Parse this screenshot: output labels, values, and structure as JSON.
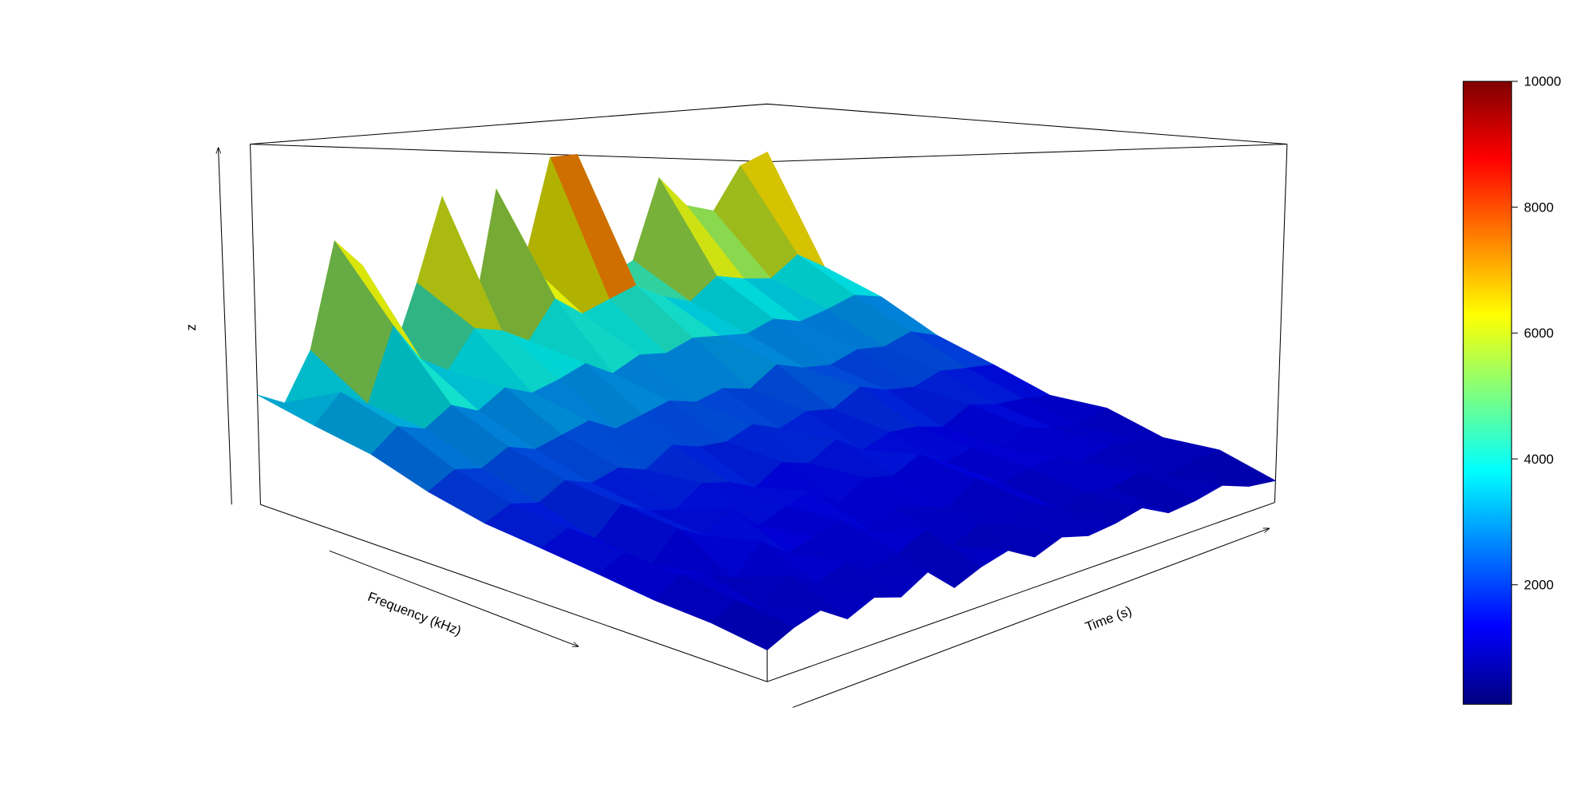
{
  "chart_data": {
    "type": "surface",
    "xlabel": "Frequency (kHz)",
    "ylabel": "Time (s)",
    "zlabel": "z",
    "zlim": [
      0,
      11500
    ],
    "z": [
      [
        3500,
        3000,
        4500,
        8000,
        7000,
        3500,
        6000,
        9000,
        4000,
        9000,
        6000,
        10000,
        10000,
        4500,
        5000,
        8500,
        7000,
        6500,
        8500,
        9000
      ],
      [
        3000,
        3800,
        3200,
        5500,
        4200,
        3600,
        4800,
        4500,
        3900,
        5200,
        4400,
        4700,
        5000,
        4300,
        3800,
        4600,
        4200,
        3900,
        4700,
        3800
      ],
      [
        2600,
        3200,
        2900,
        3400,
        3000,
        3500,
        3100,
        3300,
        3600,
        3000,
        3400,
        3200,
        3500,
        3300,
        3100,
        3400,
        3000,
        3200,
        3500,
        3100
      ],
      [
        2000,
        2400,
        2200,
        2600,
        2300,
        2500,
        2700,
        2200,
        2400,
        2600,
        2300,
        2500,
        2200,
        2800,
        2400,
        2200,
        2500,
        2300,
        2600,
        2100
      ],
      [
        1600,
        1900,
        1700,
        2100,
        1800,
        2000,
        1700,
        2200,
        1900,
        1800,
        2100,
        1700,
        2000,
        1800,
        2300,
        1900,
        1700,
        2000,
        1800,
        1600
      ],
      [
        1400,
        1700,
        1200,
        1900,
        1500,
        1300,
        1800,
        1600,
        1200,
        1700,
        1400,
        1900,
        1300,
        1600,
        1500,
        1200,
        1700,
        1400,
        1300,
        1100
      ],
      [
        1200,
        1500,
        1000,
        1700,
        1300,
        1800,
        1100,
        1400,
        1600,
        1000,
        1500,
        1300,
        1700,
        1200,
        1400,
        1100,
        1500,
        1200,
        1000,
        1300
      ],
      [
        1000,
        1400,
        1200,
        900,
        1600,
        1100,
        1300,
        1500,
        1000,
        1400,
        1200,
        900,
        1500,
        1100,
        1300,
        1400,
        1000,
        1200,
        1100,
        900
      ],
      [
        900,
        1200,
        800,
        1400,
        1000,
        1300,
        900,
        1100,
        1500,
        800,
        1200,
        1000,
        1300,
        900,
        1100,
        1000,
        1200,
        800,
        1000,
        1100
      ],
      [
        700,
        1000,
        1200,
        800,
        1100,
        900,
        1300,
        700,
        1000,
        1200,
        800,
        1100,
        900,
        1000,
        1200,
        800,
        900,
        1100,
        800,
        700
      ]
    ],
    "colorbar": {
      "lim": [
        100,
        10000
      ],
      "ticks": [
        2000,
        4000,
        6000,
        8000,
        10000
      ],
      "colors": [
        "#00007f",
        "#0000ff",
        "#007fff",
        "#00ffff",
        "#7fff7f",
        "#ffff00",
        "#ff7f00",
        "#ff0000",
        "#7f0000"
      ]
    }
  }
}
